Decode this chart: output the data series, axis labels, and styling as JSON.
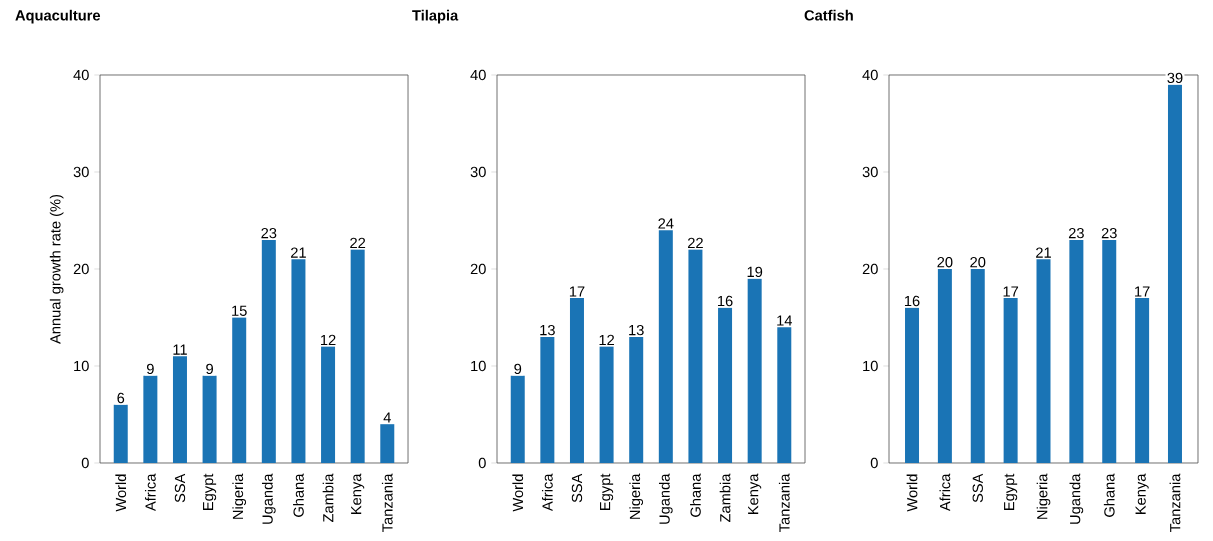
{
  "chart_data": [
    {
      "type": "bar",
      "title": "Aquaculture",
      "ylabel": "Annual growth rate (%)",
      "categories": [
        "World",
        "Africa",
        "SSA",
        "Egypt",
        "Nigeria",
        "Uganda",
        "Ghana",
        "Zambia",
        "Kenya",
        "Tanzania"
      ],
      "values": [
        6,
        9,
        11,
        9,
        15,
        23,
        21,
        12,
        22,
        4
      ],
      "color": "#1a74b5",
      "ylim": [
        0,
        40
      ],
      "yticks": [
        0,
        10,
        20,
        30,
        40
      ],
      "data_labels": true
    },
    {
      "type": "bar",
      "title": "Tilapia",
      "categories": [
        "World",
        "Africa",
        "SSA",
        "Egypt",
        "Nigeria",
        "Uganda",
        "Ghana",
        "Zambia",
        "Kenya",
        "Tanzania"
      ],
      "values": [
        9,
        13,
        17,
        12,
        13,
        24,
        22,
        16,
        19,
        14
      ],
      "color": "#1a74b5",
      "ylim": [
        0,
        40
      ],
      "yticks": [
        0,
        10,
        20,
        30,
        40
      ],
      "data_labels": true
    },
    {
      "type": "bar",
      "title": "Catfish",
      "categories": [
        "World",
        "Africa",
        "SSA",
        "Egypt",
        "Nigeria",
        "Uganda",
        "Ghana",
        "Kenya",
        "Tanzania"
      ],
      "values": [
        16,
        20,
        20,
        17,
        21,
        23,
        23,
        17,
        39
      ],
      "color": "#1a74b5",
      "ylim": [
        0,
        40
      ],
      "yticks": [
        0,
        10,
        20,
        30,
        40
      ],
      "data_labels": true
    }
  ]
}
